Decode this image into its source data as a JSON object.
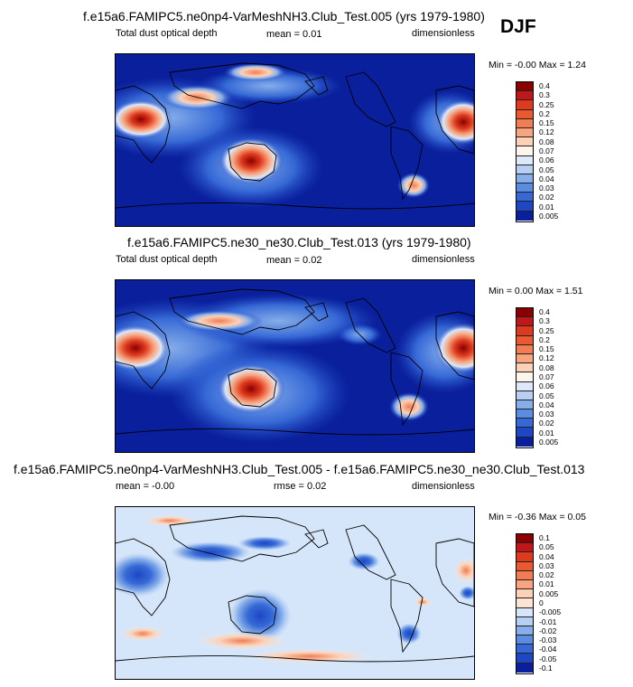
{
  "season": "DJF",
  "panels": [
    {
      "title": "f.e15a6.FAMIPC5.ne0np4-VarMeshNH3.Club_Test.005 (yrs 1979-1980)",
      "left_label": "Total dust optical depth",
      "center_label": "mean =  0.01",
      "right_label": "dimensionless",
      "minmax": "Min = -0.00 Max =  1.24"
    },
    {
      "title": "f.e15a6.FAMIPC5.ne30_ne30.Club_Test.013 (yrs 1979-1980)",
      "left_label": "Total dust optical depth",
      "center_label": "mean =  0.02",
      "right_label": "dimensionless",
      "minmax": "Min =  0.00 Max =  1.51"
    },
    {
      "title": "f.e15a6.FAMIPC5.ne0np4-VarMeshNH3.Club_Test.005 - f.e15a6.FAMIPC5.ne30_ne30.Club_Test.013",
      "left_label": "mean =  -0.00",
      "center_label": "rmse =  0.02",
      "right_label": "dimensionless",
      "minmax": "Min = -0.36 Max =  0.05"
    }
  ],
  "colorbars": {
    "abs": {
      "labels": [
        "0.4",
        "0.3",
        "0.25",
        "0.2",
        "0.15",
        "0.12",
        "0.08",
        "0.07",
        "0.06",
        "0.05",
        "0.04",
        "0.03",
        "0.02",
        "0.01",
        "0.005"
      ],
      "colors": [
        "#8b0000",
        "#c0181a",
        "#dd3a1e",
        "#ea5a30",
        "#f27d52",
        "#f8a47e",
        "#fbd2b8",
        "#fdf4ec",
        "#dde8f8",
        "#b6cff2",
        "#86aeea",
        "#5a8ce2",
        "#3669d6",
        "#1e47c4",
        "#0a1f9c"
      ]
    },
    "diff": {
      "labels": [
        "0.1",
        "0.05",
        "0.04",
        "0.03",
        "0.02",
        "0.01",
        "0.005",
        "0",
        "-0.005",
        "-0.01",
        "-0.02",
        "-0.03",
        "-0.04",
        "-0.05",
        "-0.1"
      ],
      "colors": [
        "#8b0000",
        "#c0181a",
        "#dd3a1e",
        "#ea5a30",
        "#f27d52",
        "#f8a47e",
        "#fbd2b8",
        "#fbe4d4",
        "#d6e6fa",
        "#b6cff2",
        "#86aeea",
        "#5a8ce2",
        "#3669d6",
        "#1e47c4",
        "#0a1f9c"
      ]
    }
  },
  "chart_data": [
    {
      "type": "heatmap",
      "title": "f.e15a6.FAMIPC5.ne0np4-VarMeshNH3.Club_Test.005 (yrs 1979-1980)",
      "variable": "Total dust optical depth",
      "units": "dimensionless",
      "mean": 0.01,
      "min": -0.0,
      "max": 1.24,
      "levels": [
        0.005,
        0.01,
        0.02,
        0.03,
        0.04,
        0.05,
        0.06,
        0.07,
        0.08,
        0.12,
        0.15,
        0.2,
        0.25,
        0.3,
        0.4
      ]
    },
    {
      "type": "heatmap",
      "title": "f.e15a6.FAMIPC5.ne30_ne30.Club_Test.013 (yrs 1979-1980)",
      "variable": "Total dust optical depth",
      "units": "dimensionless",
      "mean": 0.02,
      "min": 0.0,
      "max": 1.51,
      "levels": [
        0.005,
        0.01,
        0.02,
        0.03,
        0.04,
        0.05,
        0.06,
        0.07,
        0.08,
        0.12,
        0.15,
        0.2,
        0.25,
        0.3,
        0.4
      ]
    },
    {
      "type": "heatmap",
      "title": "f.e15a6.FAMIPC5.ne0np4-VarMeshNH3.Club_Test.005 - f.e15a6.FAMIPC5.ne30_ne30.Club_Test.013",
      "units": "dimensionless",
      "mean": -0.0,
      "rmse": 0.02,
      "min": -0.36,
      "max": 0.05,
      "levels": [
        -0.1,
        -0.05,
        -0.04,
        -0.03,
        -0.02,
        -0.01,
        -0.005,
        0,
        0.005,
        0.01,
        0.02,
        0.03,
        0.04,
        0.05,
        0.1
      ]
    }
  ]
}
